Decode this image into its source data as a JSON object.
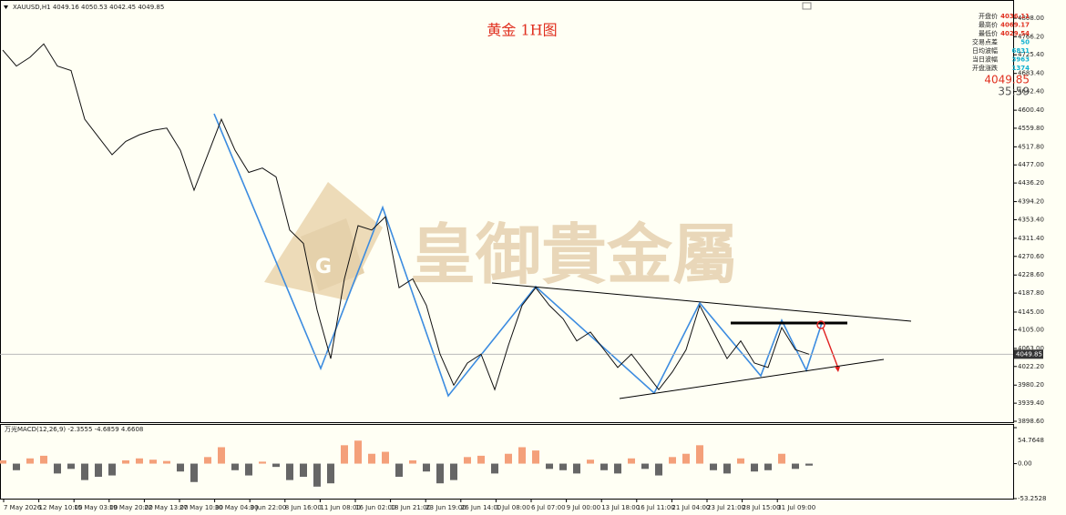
{
  "header": "XAUUSD,H1  4049.16 4050.53 4042.45 4049.85",
  "title": "黄金 1H图",
  "watermark": "皇御貴金屬",
  "info_panel": {
    "rows": [
      {
        "label": "开盘价",
        "value": 4036.11,
        "color": "#e03020"
      },
      {
        "label": "最高价",
        "value": 4069.17,
        "color": "#e03020"
      },
      {
        "label": "最低价",
        "value": 4029.54,
        "color": "#e03020"
      },
      {
        "label": "交易点差",
        "value": 50,
        "color": "#10b0d0"
      },
      {
        "label": "日均波幅",
        "value": 6831,
        "color": "#10b0d0"
      },
      {
        "label": "当日波幅",
        "value": 3963,
        "color": "#10b0d0"
      },
      {
        "label": "开盘涨跌",
        "value": 1374,
        "color": "#10b0d0"
      }
    ],
    "timer": "35:59"
  },
  "chart_data": [
    {
      "type": "line",
      "color": "#111111",
      "current_price": 4049.85,
      "values": [
        4736,
        4700,
        4720,
        4750,
        4700,
        4690,
        4580,
        4540,
        4500,
        4530,
        4545,
        4555,
        4560,
        4510,
        4420,
        4500,
        4580,
        4510,
        4460,
        4470,
        4450,
        4330,
        4300,
        4150,
        4040,
        4220,
        4340,
        4330,
        4360,
        4200,
        4220,
        4160,
        4050,
        3980,
        4030,
        4050,
        3970,
        4070,
        4160,
        4200,
        4160,
        4130,
        4080,
        4100,
        4060,
        4020,
        4050,
        4010,
        3970,
        4010,
        4060,
        4160,
        4100,
        4040,
        4080,
        4030,
        4020,
        4110,
        4060,
        4049.85
      ],
      "ylim": [
        3898.6,
        4808
      ],
      "yticks": [
        {
          "value": 4808,
          "label": "4808.00"
        },
        {
          "value": 4766.2,
          "label": "4766.20"
        },
        {
          "value": 4725.4,
          "label": "4725.40"
        },
        {
          "value": 4683.4,
          "label": "4683.40"
        },
        {
          "value": 4642.4,
          "label": "4642.40"
        },
        {
          "value": 4600.4,
          "label": "4600.40"
        },
        {
          "value": 4559.8,
          "label": "4559.80"
        },
        {
          "value": 4517.8,
          "label": "4517.80"
        },
        {
          "value": 4477,
          "label": "4477.00"
        },
        {
          "value": 4436.2,
          "label": "4436.20"
        },
        {
          "value": 4394.2,
          "label": "4394.20"
        },
        {
          "value": 4353.4,
          "label": "4353.40"
        },
        {
          "value": 4311.4,
          "label": "4311.40"
        },
        {
          "value": 4270.6,
          "label": "4270.60"
        },
        {
          "value": 4228.6,
          "label": "4228.60"
        },
        {
          "value": 4187.8,
          "label": "4187.80"
        },
        {
          "value": 4145,
          "label": "4145.00"
        },
        {
          "value": 4105,
          "label": "4105.00"
        },
        {
          "value": 4063,
          "label": "4063.00"
        },
        {
          "value": 4022.2,
          "label": "4022.20"
        },
        {
          "value": 3980.2,
          "label": "3980.20"
        },
        {
          "value": 3939.4,
          "label": "3939.40"
        },
        {
          "value": 3898.6,
          "label": "3898.60"
        }
      ],
      "xticks": [
        "7 May 2026",
        "12 May 10:00",
        "15 May 03:00",
        "19 May 20:00",
        "22 May 13:00",
        "27 May 10:00",
        "30 May 04:00",
        "3 Jun 22:00",
        "8 Jun 16:00",
        "11 Jun 08:00",
        "16 Jun 02:00",
        "18 Jun 21:00",
        "23 Jun 19:00",
        "26 Jun 14:00",
        "1 Jul 08:00",
        "6 Jul 07:00",
        "9 Jul 00:00",
        "13 Jul 18:00",
        "16 Jul 11:00",
        "21 Jul 04:00",
        "23 Jul 21:00",
        "28 Jul 15:00",
        "31 Jul 09:00"
      ]
    },
    {
      "type": "bar",
      "title": "万光MACD(12,26,9) -2.3555 -4.6859 4.6608",
      "positive_color": "#f4a07a",
      "negative_color": "#666666",
      "values": [
        5,
        -10,
        8,
        12,
        -15,
        -8,
        -25,
        -20,
        -18,
        5,
        8,
        6,
        4,
        -12,
        -28,
        10,
        25,
        -10,
        -18,
        3,
        -5,
        -25,
        -20,
        -35,
        -30,
        28,
        35,
        15,
        18,
        -20,
        5,
        -12,
        -30,
        -25,
        10,
        12,
        -15,
        15,
        25,
        20,
        -8,
        -10,
        -15,
        6,
        -10,
        -15,
        8,
        -8,
        -18,
        10,
        15,
        28,
        -10,
        -15,
        8,
        -12,
        -10,
        15,
        -8,
        -3
      ],
      "ylim": [
        -53.2528,
        54.7648
      ],
      "yticks": [
        54.7648,
        {
          "value": 0,
          "label": "0.00"
        },
        -53.2528
      ]
    }
  ]
}
